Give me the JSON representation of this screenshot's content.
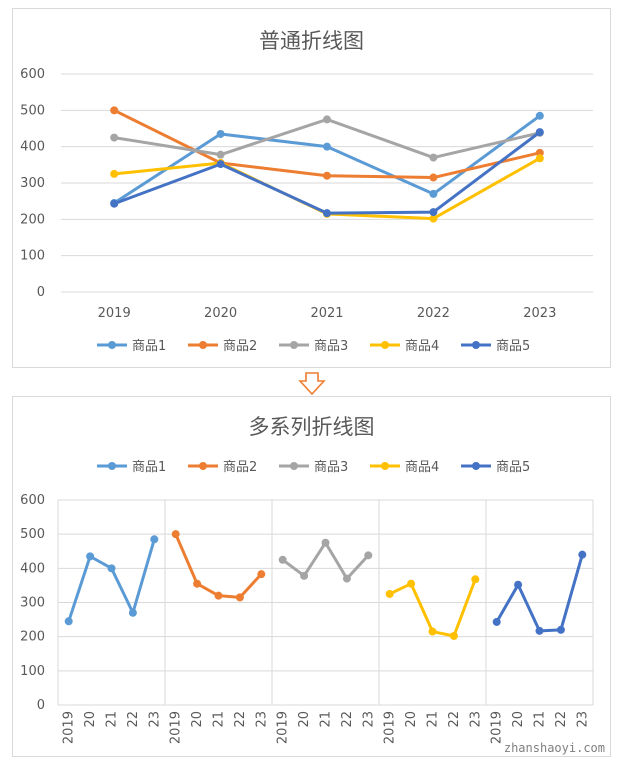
{
  "chart_data": [
    {
      "type": "line",
      "title": "普通折线图",
      "categories": [
        "2019",
        "2020",
        "2021",
        "2022",
        "2023"
      ],
      "ylim": [
        0,
        600
      ],
      "yticks": [
        0,
        100,
        200,
        300,
        400,
        500,
        600
      ],
      "grid": true,
      "legend": "bottom",
      "series": [
        {
          "name": "商品1",
          "color": "#5b9bd5",
          "values": [
            245,
            435,
            400,
            270,
            485
          ]
        },
        {
          "name": "商品2",
          "color": "#ed7d31",
          "values": [
            500,
            355,
            320,
            315,
            383
          ]
        },
        {
          "name": "商品3",
          "color": "#a5a5a5",
          "values": [
            425,
            378,
            475,
            370,
            438
          ]
        },
        {
          "name": "商品4",
          "color": "#ffc000",
          "values": [
            325,
            355,
            215,
            202,
            368
          ]
        },
        {
          "name": "商品5",
          "color": "#4472c4",
          "values": [
            243,
            352,
            217,
            220,
            440
          ]
        }
      ]
    },
    {
      "type": "line",
      "title": "多系列折线图",
      "categories": [
        "2019",
        "20",
        "21",
        "22",
        "23"
      ],
      "ylim": [
        0,
        600
      ],
      "yticks": [
        0,
        100,
        200,
        300,
        400,
        500,
        600
      ],
      "grid": true,
      "legend": "top",
      "layout": "panels-per-series",
      "series": [
        {
          "name": "商品1",
          "color": "#5b9bd5",
          "values": [
            245,
            435,
            400,
            270,
            485
          ]
        },
        {
          "name": "商品2",
          "color": "#ed7d31",
          "values": [
            500,
            355,
            320,
            315,
            383
          ]
        },
        {
          "name": "商品3",
          "color": "#a5a5a5",
          "values": [
            425,
            378,
            475,
            370,
            438
          ]
        },
        {
          "name": "商品4",
          "color": "#ffc000",
          "values": [
            325,
            355,
            215,
            202,
            368
          ]
        },
        {
          "name": "商品5",
          "color": "#4472c4",
          "values": [
            243,
            352,
            217,
            220,
            440
          ]
        }
      ]
    }
  ],
  "transition_arrow": {
    "icon": "down-arrow-icon",
    "color": "#ed7d31"
  },
  "watermark": "zhanshaoyi.com"
}
